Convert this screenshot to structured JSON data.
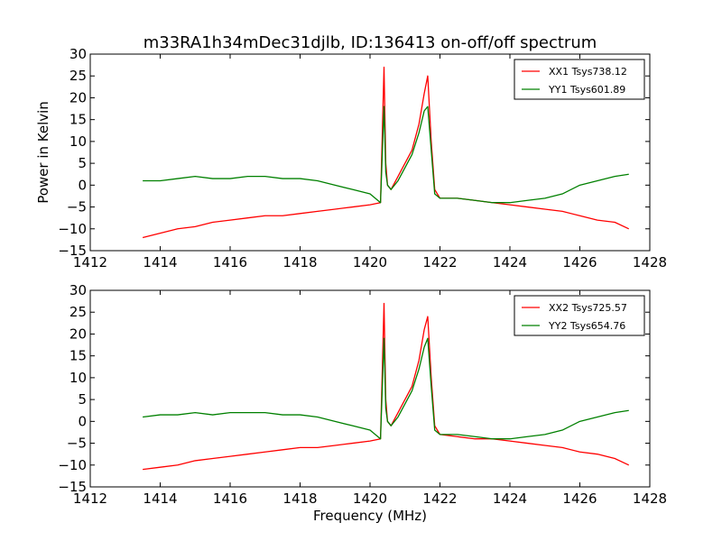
{
  "figure": {
    "title": "m33RA1h34mDec31djlb, ID:136413 on-off/off spectrum",
    "xlabel": "Frequency (MHz)",
    "ylabel": "Power in Kelvin"
  },
  "chart_data": [
    {
      "type": "line",
      "xlim": [
        1412,
        1428
      ],
      "ylim": [
        -15,
        30
      ],
      "xticks": [
        1412,
        1414,
        1416,
        1418,
        1420,
        1422,
        1424,
        1426,
        1428
      ],
      "yticks": [
        -15,
        -10,
        -5,
        0,
        5,
        10,
        15,
        20,
        25,
        30
      ],
      "xtick_labels": [
        "1412",
        "1414",
        "1416",
        "1418",
        "1420",
        "1422",
        "1424",
        "1426",
        "1428"
      ],
      "ytick_labels": [
        "−15",
        "−10",
        "−5",
        "0",
        "5",
        "10",
        "15",
        "20",
        "25",
        "30"
      ],
      "legend_position": "top-right",
      "series": [
        {
          "name": "XX1 Tsys738.12",
          "color": "#ff0000",
          "x": [
            1413.5,
            1414,
            1414.5,
            1415,
            1415.5,
            1416,
            1416.5,
            1417,
            1417.5,
            1418,
            1418.5,
            1419,
            1419.5,
            1420,
            1420.3,
            1420.4,
            1420.45,
            1420.5,
            1420.6,
            1420.8,
            1421,
            1421.2,
            1421.4,
            1421.55,
            1421.65,
            1421.75,
            1421.85,
            1422,
            1422.5,
            1423,
            1423.5,
            1424,
            1424.5,
            1425,
            1425.5,
            1426,
            1426.5,
            1427,
            1427.4
          ],
          "y": [
            -12,
            -11,
            -10,
            -9.5,
            -8.5,
            -8,
            -7.5,
            -7,
            -7,
            -6.5,
            -6,
            -5.5,
            -5,
            -4.5,
            -4,
            27,
            5,
            0,
            -1,
            2,
            5,
            8,
            14,
            21,
            25,
            10,
            -1,
            -3,
            -3,
            -3.5,
            -4,
            -4.5,
            -5,
            -5.5,
            -6,
            -7,
            -8,
            -8.5,
            -10
          ]
        },
        {
          "name": "YY1 Tsys601.89",
          "color": "#008000",
          "x": [
            1413.5,
            1414,
            1414.5,
            1415,
            1415.5,
            1416,
            1416.5,
            1417,
            1417.5,
            1418,
            1418.5,
            1419,
            1419.5,
            1420,
            1420.3,
            1420.4,
            1420.45,
            1420.5,
            1420.6,
            1420.8,
            1421,
            1421.2,
            1421.4,
            1421.55,
            1421.65,
            1421.75,
            1421.85,
            1422,
            1422.5,
            1423,
            1423.5,
            1424,
            1424.5,
            1425,
            1425.5,
            1426,
            1426.5,
            1427,
            1427.4
          ],
          "y": [
            1,
            1,
            1.5,
            2,
            1.5,
            1.5,
            2,
            2,
            1.5,
            1.5,
            1,
            0,
            -1,
            -2,
            -4,
            18,
            3,
            0,
            -1,
            1,
            4,
            7,
            12,
            17,
            18,
            8,
            -2,
            -3,
            -3,
            -3.5,
            -4,
            -4,
            -3.5,
            -3,
            -2,
            0,
            1,
            2,
            2.5
          ]
        }
      ]
    },
    {
      "type": "line",
      "xlim": [
        1412,
        1428
      ],
      "ylim": [
        -15,
        30
      ],
      "xticks": [
        1412,
        1414,
        1416,
        1418,
        1420,
        1422,
        1424,
        1426,
        1428
      ],
      "yticks": [
        -15,
        -10,
        -5,
        0,
        5,
        10,
        15,
        20,
        25,
        30
      ],
      "xtick_labels": [
        "1412",
        "1414",
        "1416",
        "1418",
        "1420",
        "1422",
        "1424",
        "1426",
        "1428"
      ],
      "ytick_labels": [
        "−15",
        "−10",
        "−5",
        "0",
        "5",
        "10",
        "15",
        "20",
        "25",
        "30"
      ],
      "legend_position": "top-right",
      "series": [
        {
          "name": "XX2 Tsys725.57",
          "color": "#ff0000",
          "x": [
            1413.5,
            1414,
            1414.5,
            1415,
            1415.5,
            1416,
            1416.5,
            1417,
            1417.5,
            1418,
            1418.5,
            1419,
            1419.5,
            1420,
            1420.3,
            1420.4,
            1420.45,
            1420.5,
            1420.6,
            1420.8,
            1421,
            1421.2,
            1421.4,
            1421.55,
            1421.65,
            1421.75,
            1421.85,
            1422,
            1422.5,
            1423,
            1423.5,
            1424,
            1424.5,
            1425,
            1425.5,
            1426,
            1426.5,
            1427,
            1427.4
          ],
          "y": [
            -11,
            -10.5,
            -10,
            -9,
            -8.5,
            -8,
            -7.5,
            -7,
            -6.5,
            -6,
            -6,
            -5.5,
            -5,
            -4.5,
            -4,
            27,
            5,
            0,
            -1,
            2,
            5,
            8,
            14,
            21,
            24,
            10,
            -1,
            -3,
            -3.5,
            -4,
            -4,
            -4.5,
            -5,
            -5.5,
            -6,
            -7,
            -7.5,
            -8.5,
            -10
          ]
        },
        {
          "name": "YY2 Tsys654.76",
          "color": "#008000",
          "x": [
            1413.5,
            1414,
            1414.5,
            1415,
            1415.5,
            1416,
            1416.5,
            1417,
            1417.5,
            1418,
            1418.5,
            1419,
            1419.5,
            1420,
            1420.3,
            1420.4,
            1420.45,
            1420.5,
            1420.6,
            1420.8,
            1421,
            1421.2,
            1421.4,
            1421.55,
            1421.65,
            1421.75,
            1421.85,
            1422,
            1422.5,
            1423,
            1423.5,
            1424,
            1424.5,
            1425,
            1425.5,
            1426,
            1426.5,
            1427,
            1427.4
          ],
          "y": [
            1,
            1.5,
            1.5,
            2,
            1.5,
            2,
            2,
            2,
            1.5,
            1.5,
            1,
            0,
            -1,
            -2,
            -4,
            19,
            3,
            0,
            -1,
            1,
            4,
            7,
            12,
            17,
            19,
            8,
            -2,
            -3,
            -3,
            -3.5,
            -4,
            -4,
            -3.5,
            -3,
            -2,
            0,
            1,
            2,
            2.5
          ]
        }
      ]
    }
  ]
}
